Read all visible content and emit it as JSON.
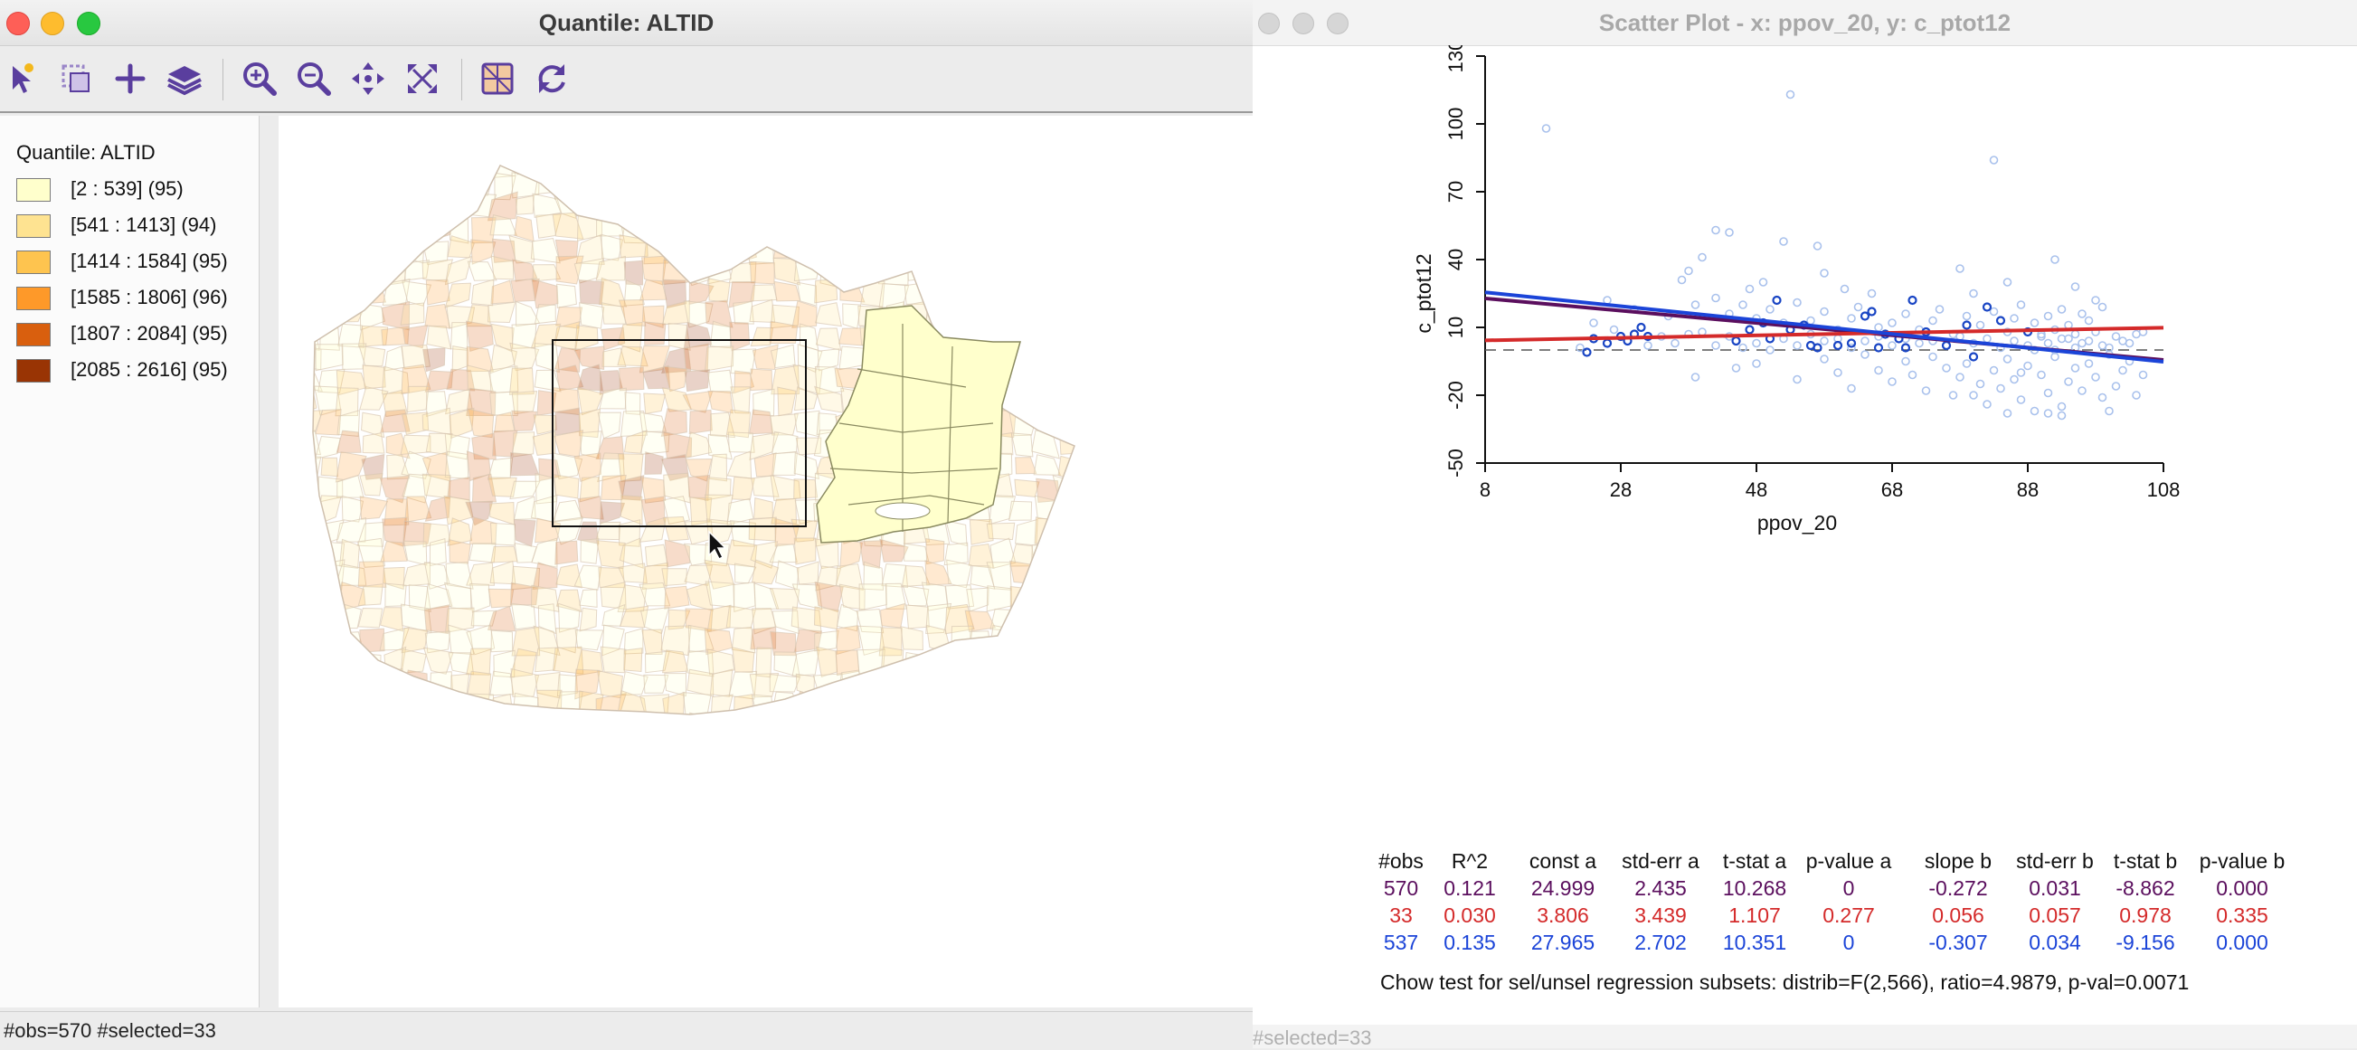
{
  "map_window": {
    "title": "Quantile: ALTID",
    "toolbar": [
      "select-tool-icon",
      "selection-settings-icon",
      "add-icon",
      "layers-icon",
      "zoom-in-icon",
      "zoom-out-icon",
      "pan-icon",
      "full-extent-icon",
      "basemap-icon",
      "refresh-icon"
    ],
    "legend": {
      "title": "Quantile: ALTID",
      "items": [
        {
          "label": "[2 : 539] (95)",
          "color": "#ffffcc"
        },
        {
          "label": "[541 : 1413] (94)",
          "color": "#fee391"
        },
        {
          "label": "[1414 : 1584] (95)",
          "color": "#fec44f"
        },
        {
          "label": "[1585 : 1806] (96)",
          "color": "#fe9929"
        },
        {
          "label": "[1807 : 2084] (95)",
          "color": "#d95f0e"
        },
        {
          "label": "[2085 : 2616] (95)",
          "color": "#993404"
        }
      ]
    },
    "status": "#obs=570 #selected=33"
  },
  "scatter_window": {
    "title": "Scatter Plot - x: ppov_20, y: c_ptot12",
    "status": "#selected=33",
    "chart_data": {
      "type": "scatter",
      "xlabel": "ppov_20",
      "ylabel": "c_ptot12",
      "xlim": [
        8,
        108
      ],
      "ylim": [
        -50,
        130
      ],
      "x_ticks": [
        "8",
        "28",
        "48",
        "68",
        "88",
        "108"
      ],
      "y_ticks": [
        "-50",
        "-20",
        "10",
        "40",
        "70",
        "100",
        "130"
      ],
      "reference_line_y": 0,
      "selected_points": [
        [
          23,
          -1
        ],
        [
          24,
          5
        ],
        [
          26,
          3
        ],
        [
          28,
          6
        ],
        [
          29,
          4
        ],
        [
          30,
          7
        ],
        [
          31,
          10
        ],
        [
          32,
          6
        ],
        [
          45,
          4
        ],
        [
          47,
          9
        ],
        [
          49,
          12
        ],
        [
          50,
          5
        ],
        [
          51,
          22
        ],
        [
          53,
          9
        ],
        [
          55,
          11
        ],
        [
          56,
          2
        ],
        [
          57,
          1
        ],
        [
          60,
          2
        ],
        [
          62,
          3
        ],
        [
          64,
          15
        ],
        [
          65,
          17
        ],
        [
          66,
          1
        ],
        [
          67,
          7
        ],
        [
          69,
          5
        ],
        [
          70,
          1
        ],
        [
          71,
          22
        ],
        [
          73,
          8
        ],
        [
          76,
          2
        ],
        [
          79,
          11
        ],
        [
          80,
          -3
        ],
        [
          82,
          19
        ],
        [
          84,
          13
        ],
        [
          88,
          8
        ]
      ],
      "unselected_points": [
        [
          17,
          98
        ],
        [
          53,
          113
        ],
        [
          83,
          84
        ],
        [
          42,
          53
        ],
        [
          44,
          52
        ],
        [
          57,
          46
        ],
        [
          40,
          41
        ],
        [
          52,
          48
        ],
        [
          37,
          31
        ],
        [
          38,
          35
        ],
        [
          47,
          27
        ],
        [
          49,
          30
        ],
        [
          58,
          34
        ],
        [
          61,
          27
        ],
        [
          65,
          25
        ],
        [
          78,
          36
        ],
        [
          80,
          25
        ],
        [
          85,
          30
        ],
        [
          92,
          40
        ],
        [
          95,
          28
        ],
        [
          26,
          22
        ],
        [
          30,
          18
        ],
        [
          35,
          15
        ],
        [
          39,
          20
        ],
        [
          42,
          23
        ],
        [
          44,
          16
        ],
        [
          46,
          20
        ],
        [
          48,
          14
        ],
        [
          50,
          18
        ],
        [
          52,
          12
        ],
        [
          54,
          21
        ],
        [
          56,
          13
        ],
        [
          58,
          17
        ],
        [
          60,
          9
        ],
        [
          62,
          14
        ],
        [
          63,
          19
        ],
        [
          66,
          10
        ],
        [
          68,
          12
        ],
        [
          70,
          16
        ],
        [
          72,
          9
        ],
        [
          74,
          13
        ],
        [
          75,
          18
        ],
        [
          77,
          7
        ],
        [
          79,
          15
        ],
        [
          81,
          11
        ],
        [
          83,
          17
        ],
        [
          85,
          8
        ],
        [
          86,
          14
        ],
        [
          87,
          20
        ],
        [
          89,
          12
        ],
        [
          90,
          6
        ],
        [
          91,
          15
        ],
        [
          92,
          9
        ],
        [
          93,
          18
        ],
        [
          94,
          11
        ],
        [
          95,
          7
        ],
        [
          96,
          16
        ],
        [
          97,
          13
        ],
        [
          98,
          22
        ],
        [
          99,
          19
        ],
        [
          39,
          -12
        ],
        [
          45,
          -8
        ],
        [
          48,
          -6
        ],
        [
          54,
          -13
        ],
        [
          58,
          -4
        ],
        [
          60,
          -10
        ],
        [
          62,
          -17
        ],
        [
          64,
          -2
        ],
        [
          66,
          -9
        ],
        [
          68,
          -14
        ],
        [
          70,
          -5
        ],
        [
          71,
          -11
        ],
        [
          73,
          -18
        ],
        [
          74,
          -3
        ],
        [
          76,
          -8
        ],
        [
          77,
          -20
        ],
        [
          78,
          -12
        ],
        [
          79,
          -6
        ],
        [
          81,
          -15
        ],
        [
          82,
          -24
        ],
        [
          83,
          -9
        ],
        [
          84,
          -17
        ],
        [
          85,
          -4
        ],
        [
          86,
          -13
        ],
        [
          87,
          -22
        ],
        [
          88,
          -7
        ],
        [
          89,
          -27
        ],
        [
          90,
          -11
        ],
        [
          91,
          -19
        ],
        [
          92,
          -3
        ],
        [
          93,
          -25
        ],
        [
          94,
          -14
        ],
        [
          95,
          -8
        ],
        [
          96,
          -18
        ],
        [
          97,
          -6
        ],
        [
          98,
          -12
        ],
        [
          99,
          -21
        ],
        [
          100,
          -2
        ],
        [
          101,
          -16
        ],
        [
          102,
          -9
        ],
        [
          103,
          -5
        ],
        [
          104,
          -20
        ],
        [
          105,
          -11
        ],
        [
          91,
          -28
        ],
        [
          93,
          -29
        ],
        [
          100,
          -27
        ],
        [
          80,
          -20
        ],
        [
          85,
          -28
        ],
        [
          87,
          -10
        ],
        [
          89,
          0
        ],
        [
          91,
          3
        ],
        [
          93,
          5
        ],
        [
          95,
          1
        ],
        [
          97,
          4
        ],
        [
          99,
          2
        ],
        [
          101,
          6
        ],
        [
          103,
          3
        ],
        [
          105,
          8
        ],
        [
          74,
          4
        ],
        [
          76,
          2
        ],
        [
          78,
          6
        ],
        [
          80,
          3
        ],
        [
          82,
          5
        ],
        [
          84,
          1
        ],
        [
          86,
          4
        ],
        [
          88,
          2
        ],
        [
          90,
          7
        ],
        [
          92,
          0
        ],
        [
          94,
          5
        ],
        [
          96,
          3
        ],
        [
          98,
          8
        ],
        [
          100,
          1
        ],
        [
          102,
          4
        ],
        [
          104,
          7
        ],
        [
          60,
          5
        ],
        [
          62,
          1
        ],
        [
          64,
          4
        ],
        [
          66,
          6
        ],
        [
          68,
          2
        ],
        [
          70,
          5
        ],
        [
          72,
          3
        ],
        [
          40,
          8
        ],
        [
          42,
          2
        ],
        [
          44,
          6
        ],
        [
          46,
          1
        ],
        [
          48,
          3
        ],
        [
          50,
          0
        ],
        [
          52,
          5
        ],
        [
          54,
          2
        ],
        [
          56,
          7
        ],
        [
          58,
          4
        ],
        [
          22,
          1
        ],
        [
          24,
          12
        ],
        [
          27,
          9
        ],
        [
          32,
          2
        ],
        [
          34,
          6
        ],
        [
          36,
          3
        ],
        [
          38,
          7
        ]
      ],
      "fits": [
        {
          "subset": "all",
          "color": "#5b0f5e",
          "intercept": 24.999,
          "slope": -0.272
        },
        {
          "subset": "selected",
          "color": "#d42a2a",
          "intercept": 3.806,
          "slope": 0.056
        },
        {
          "subset": "unselected",
          "color": "#1b44d8",
          "intercept": 27.965,
          "slope": -0.307
        }
      ],
      "table": {
        "headers": [
          "#obs",
          "R^2",
          "const a",
          "std-err a",
          "t-stat a",
          "p-value a",
          "slope b",
          "std-err b",
          "t-stat b",
          "p-value b"
        ],
        "rows": [
          {
            "color": "#5b0f5e",
            "cells": [
              "570",
              "0.121",
              "24.999",
              "2.435",
              "10.268",
              "0",
              "-0.272",
              "0.031",
              "-8.862",
              "0.000"
            ]
          },
          {
            "color": "#d42a2a",
            "cells": [
              "33",
              "0.030",
              "3.806",
              "3.439",
              "1.107",
              "0.277",
              "0.056",
              "0.057",
              "0.978",
              "0.335"
            ]
          },
          {
            "color": "#1b44d8",
            "cells": [
              "537",
              "0.135",
              "27.965",
              "2.702",
              "10.351",
              "0",
              "-0.307",
              "0.034",
              "-9.156",
              "0.000"
            ]
          }
        ]
      },
      "chow_text": "Chow test for sel/unsel regression subsets: distrib=F(2,566), ratio=4.9879, p-val=0.0071"
    }
  }
}
